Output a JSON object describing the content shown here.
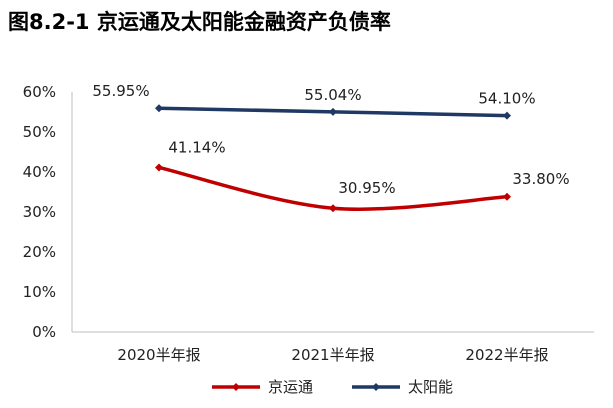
{
  "chart_data": {
    "type": "line",
    "title": "图8.2-1 京运通及太阳能金融资产负债率",
    "categories": [
      "2020半年报",
      "2021半年报",
      "2022半年报"
    ],
    "series": [
      {
        "name": "京运通",
        "values": [
          41.14,
          30.95,
          33.8
        ],
        "labels": [
          "41.14%",
          "30.95%",
          "33.80%"
        ],
        "color": "#c00000",
        "smooth": true
      },
      {
        "name": "太阳能",
        "values": [
          55.95,
          55.04,
          54.1
        ],
        "labels": [
          "55.95%",
          "55.04%",
          "54.10%"
        ],
        "color": "#1f3864",
        "smooth": false
      }
    ],
    "y_ticks": [
      "0%",
      "10%",
      "20%",
      "30%",
      "40%",
      "50%",
      "60%"
    ],
    "ylim": [
      0,
      60
    ],
    "grid": false,
    "legend_position": "bottom"
  }
}
